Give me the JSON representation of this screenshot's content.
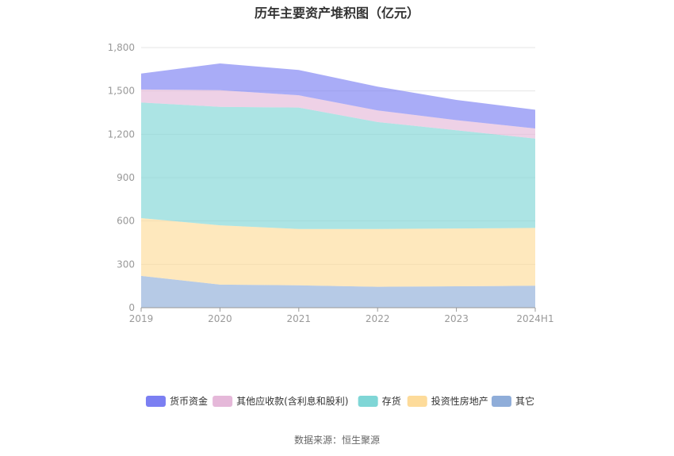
{
  "title": "历年主要资产堆积图（亿元）",
  "source": "数据来源：恒生聚源",
  "colors": {
    "货币资金": "#7b7ff2",
    "其他应收款(含利息和股利)": "#e5b8d9",
    "存货": "#7fd6d6",
    "投资性房地产": "#fddb9a",
    "其它": "#8fadd9"
  },
  "chart_data": {
    "type": "area",
    "stacked": true,
    "categories": [
      "2019",
      "2020",
      "2021",
      "2022",
      "2023",
      "2024H1"
    ],
    "y_ticks": [
      "0",
      "300",
      "600",
      "900",
      "1,200",
      "1,500",
      "1,800"
    ],
    "ylim": [
      0,
      1800
    ],
    "grid": true,
    "legend_position": "bottom",
    "series": [
      {
        "name": "其它",
        "values": [
          220,
          160,
          155,
          145,
          148,
          152
        ]
      },
      {
        "name": "投资性房地产",
        "values": [
          400,
          410,
          390,
          400,
          400,
          400
        ]
      },
      {
        "name": "存货",
        "values": [
          800,
          820,
          840,
          740,
          680,
          618
        ]
      },
      {
        "name": "其他应收款(含利息和股利)",
        "values": [
          90,
          115,
          85,
          80,
          70,
          70
        ]
      },
      {
        "name": "货币资金",
        "values": [
          110,
          185,
          175,
          165,
          140,
          130
        ]
      }
    ],
    "legend_order": [
      "货币资金",
      "其他应收款(含利息和股利)",
      "存货",
      "投资性房地产",
      "其它"
    ]
  }
}
